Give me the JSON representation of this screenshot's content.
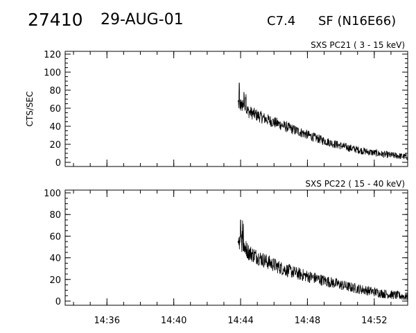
{
  "header": {
    "event_id": "27410",
    "date": "29-AUG-01",
    "goes_class": "C7.4",
    "location": "SF (N16E66)"
  },
  "chart_data": [
    {
      "type": "line",
      "title": "SXS PC21  (  3 - 15 keV)",
      "ylabel": "CTS/SEC",
      "ylim": [
        0,
        120
      ],
      "yticks": [
        0,
        20,
        40,
        60,
        80,
        100,
        120
      ],
      "xlim": [
        "14:33:30",
        "14:54:00"
      ],
      "xticks": [
        "14:36",
        "14:40",
        "14:44",
        "14:48",
        "14:52"
      ],
      "x": [
        "14:43:50",
        "14:44:30",
        "14:45:30",
        "14:46:30",
        "14:47:30",
        "14:48:30",
        "14:49:30",
        "14:50:30",
        "14:51:30",
        "14:52:30",
        "14:53:30",
        "14:54:00"
      ],
      "y": [
        66,
        56,
        48,
        41,
        34,
        27,
        21,
        16,
        12,
        9,
        7,
        6
      ],
      "noise": 8,
      "peak": {
        "x": "14:43:55",
        "y": 88
      }
    },
    {
      "type": "line",
      "title": "SXS PC22  ( 15 - 40 keV)",
      "ylim": [
        0,
        100
      ],
      "yticks": [
        0,
        20,
        40,
        60,
        80,
        100
      ],
      "xlim": [
        "14:33:30",
        "14:54:00"
      ],
      "xticks": [
        "14:36",
        "14:40",
        "14:44",
        "14:48",
        "14:52"
      ],
      "x": [
        "14:43:50",
        "14:44:30",
        "14:45:30",
        "14:46:30",
        "14:47:30",
        "14:48:30",
        "14:49:30",
        "14:50:30",
        "14:51:30",
        "14:52:30",
        "14:53:30",
        "14:54:00"
      ],
      "y": [
        58,
        45,
        37,
        30,
        25,
        21,
        17,
        13,
        10,
        7,
        5,
        4
      ],
      "noise": 9,
      "peak": {
        "x": "14:44:00",
        "y": 75
      }
    }
  ]
}
